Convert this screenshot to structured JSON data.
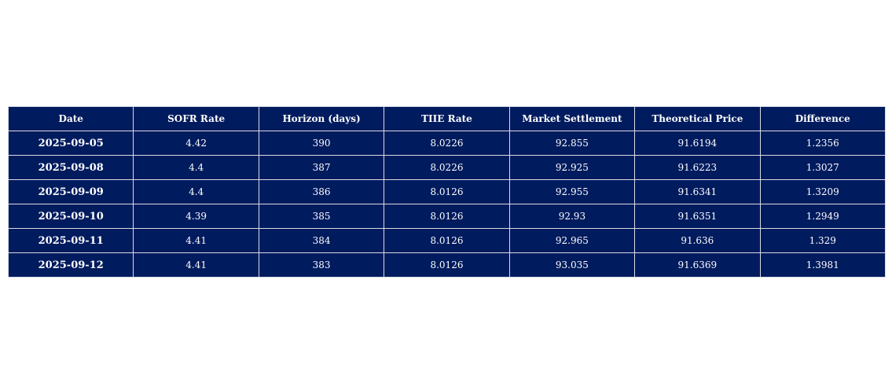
{
  "chart_data": {
    "type": "table",
    "columns": [
      "Date",
      "SOFR Rate",
      "Horizon (days)",
      "TIIE Rate",
      "Market Settlement",
      "Theoretical Price",
      "Difference"
    ],
    "rows": [
      [
        "2025-09-05",
        "4.42",
        "390",
        "8.0226",
        "92.855",
        "91.6194",
        "1.2356"
      ],
      [
        "2025-09-08",
        "4.4",
        "387",
        "8.0226",
        "92.925",
        "91.6223",
        "1.3027"
      ],
      [
        "2025-09-09",
        "4.4",
        "386",
        "8.0126",
        "92.955",
        "91.6341",
        "1.3209"
      ],
      [
        "2025-09-10",
        "4.39",
        "385",
        "8.0126",
        "92.93",
        "91.6351",
        "1.2949"
      ],
      [
        "2025-09-11",
        "4.41",
        "384",
        "8.0126",
        "92.965",
        "91.636",
        "1.329"
      ],
      [
        "2025-09-12",
        "4.41",
        "383",
        "8.0126",
        "93.035",
        "91.6369",
        "1.3981"
      ]
    ],
    "colors": {
      "cell_background": "#001b5e",
      "cell_text": "#ffffff",
      "grid_line": "#d9dce4"
    }
  }
}
